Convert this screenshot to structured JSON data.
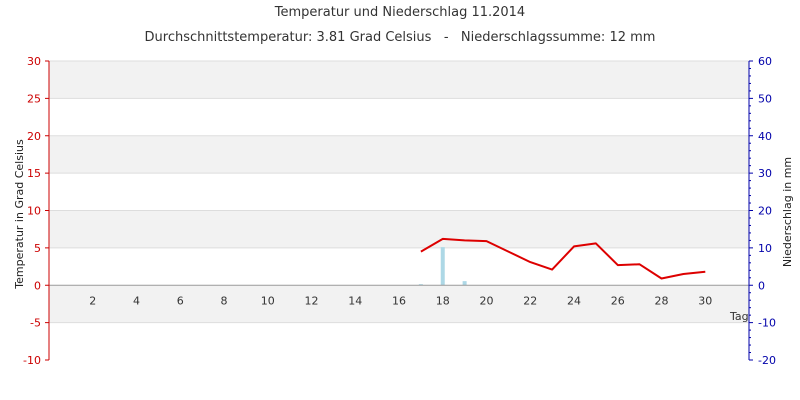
{
  "chart_data": {
    "type": "line",
    "title": "Temperatur und Niederschlag 11.2014",
    "subtitle": "Durchschnittstemperatur: 3.81 Grad Celsius   -   Niederschlagssumme: 12 mm",
    "xlabel": "Tag",
    "ylabel_left": "Temperatur in Grad Celsius",
    "ylabel_right": "Niederschlag in mm",
    "xlim": [
      0,
      32
    ],
    "ylim_left": [
      -10,
      30
    ],
    "ylim_right": [
      -20,
      60
    ],
    "x_ticks": [
      "2",
      "4",
      "6",
      "8",
      "10",
      "12",
      "14",
      "16",
      "18",
      "20",
      "22",
      "24",
      "26",
      "28",
      "30"
    ],
    "y_ticks_left": [
      "-10",
      "-5",
      "0",
      "5",
      "10",
      "15",
      "20",
      "25",
      "30"
    ],
    "y_ticks_right": [
      "-20",
      "-10",
      "0",
      "10",
      "20",
      "30",
      "40",
      "50",
      "60"
    ],
    "grid": true,
    "colors": {
      "temperature": "#dd0000",
      "precipitation": "#add8e6",
      "left_axis": "#cc0000",
      "right_axis": "#0000aa",
      "band": "#f2f2f2",
      "grid": "#dddddd"
    },
    "series": [
      {
        "type": "line",
        "axis": "left",
        "points": [
          [
            17,
            4.5
          ],
          [
            18,
            6.2
          ],
          [
            19,
            6.0
          ],
          [
            20,
            5.9
          ],
          [
            21,
            4.5
          ],
          [
            22,
            3.1
          ],
          [
            23,
            2.1
          ],
          [
            24,
            5.2
          ],
          [
            25,
            5.6
          ],
          [
            26,
            2.7
          ],
          [
            27,
            2.8
          ],
          [
            28,
            0.9
          ],
          [
            29,
            1.5
          ],
          [
            30,
            1.8
          ]
        ]
      },
      {
        "type": "bar",
        "axis": "right",
        "points": [
          [
            17,
            0.3
          ],
          [
            18,
            10.2
          ],
          [
            19,
            1.1
          ]
        ]
      }
    ]
  }
}
